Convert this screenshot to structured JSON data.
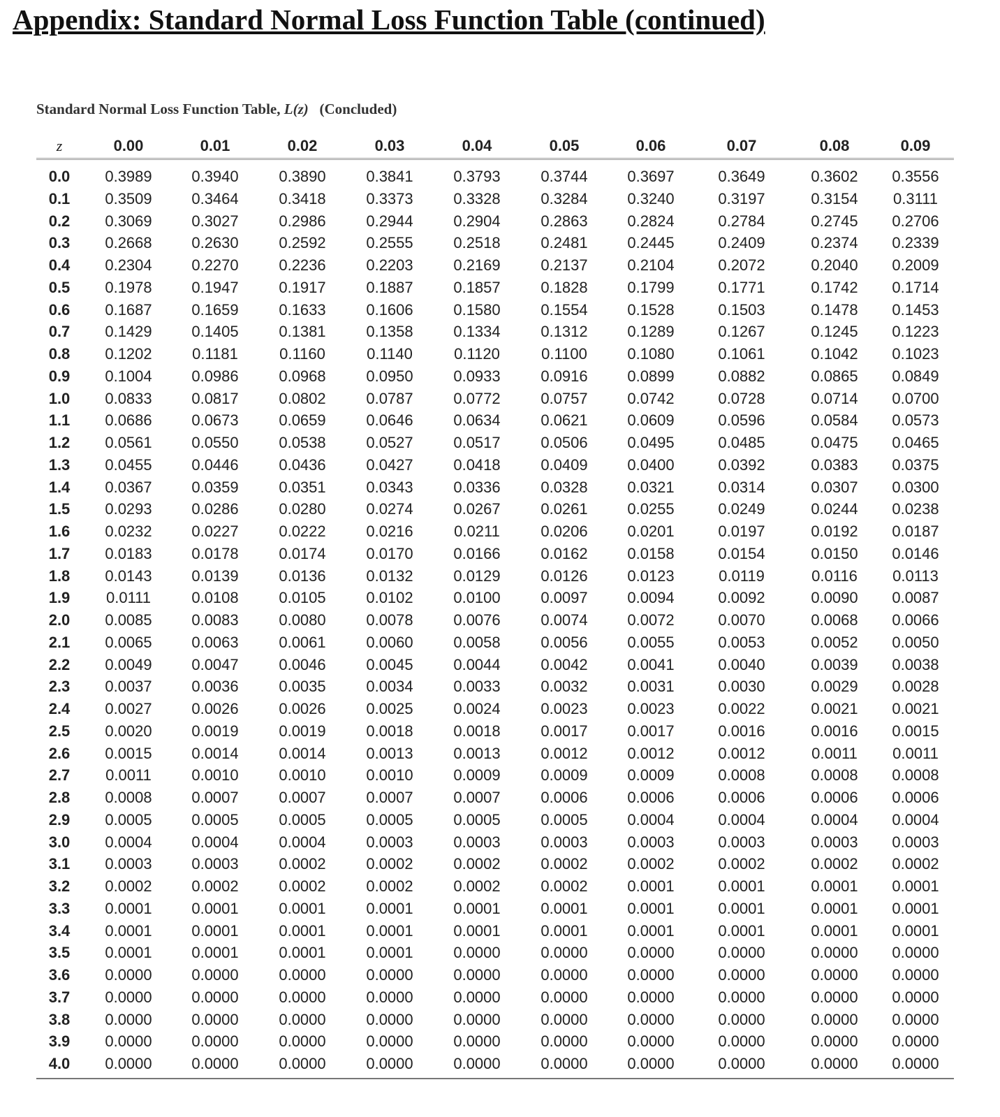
{
  "page_title": "Appendix: Standard Normal Loss Function Table (continued)",
  "table": {
    "caption_main": "Standard Normal Loss Function Table, ",
    "caption_func": "L(z)",
    "caption_suffix": "(Concluded)",
    "headers": [
      "z",
      "0.00",
      "0.01",
      "0.02",
      "0.03",
      "0.04",
      "0.05",
      "0.06",
      "0.07",
      "0.08",
      "0.09"
    ],
    "rows": [
      [
        "0.0",
        "0.3989",
        "0.3940",
        "0.3890",
        "0.3841",
        "0.3793",
        "0.3744",
        "0.3697",
        "0.3649",
        "0.3602",
        "0.3556"
      ],
      [
        "0.1",
        "0.3509",
        "0.3464",
        "0.3418",
        "0.3373",
        "0.3328",
        "0.3284",
        "0.3240",
        "0.3197",
        "0.3154",
        "0.3111"
      ],
      [
        "0.2",
        "0.3069",
        "0.3027",
        "0.2986",
        "0.2944",
        "0.2904",
        "0.2863",
        "0.2824",
        "0.2784",
        "0.2745",
        "0.2706"
      ],
      [
        "0.3",
        "0.2668",
        "0.2630",
        "0.2592",
        "0.2555",
        "0.2518",
        "0.2481",
        "0.2445",
        "0.2409",
        "0.2374",
        "0.2339"
      ],
      [
        "0.4",
        "0.2304",
        "0.2270",
        "0.2236",
        "0.2203",
        "0.2169",
        "0.2137",
        "0.2104",
        "0.2072",
        "0.2040",
        "0.2009"
      ],
      [
        "0.5",
        "0.1978",
        "0.1947",
        "0.1917",
        "0.1887",
        "0.1857",
        "0.1828",
        "0.1799",
        "0.1771",
        "0.1742",
        "0.1714"
      ],
      [
        "0.6",
        "0.1687",
        "0.1659",
        "0.1633",
        "0.1606",
        "0.1580",
        "0.1554",
        "0.1528",
        "0.1503",
        "0.1478",
        "0.1453"
      ],
      [
        "0.7",
        "0.1429",
        "0.1405",
        "0.1381",
        "0.1358",
        "0.1334",
        "0.1312",
        "0.1289",
        "0.1267",
        "0.1245",
        "0.1223"
      ],
      [
        "0.8",
        "0.1202",
        "0.1181",
        "0.1160",
        "0.1140",
        "0.1120",
        "0.1100",
        "0.1080",
        "0.1061",
        "0.1042",
        "0.1023"
      ],
      [
        "0.9",
        "0.1004",
        "0.0986",
        "0.0968",
        "0.0950",
        "0.0933",
        "0.0916",
        "0.0899",
        "0.0882",
        "0.0865",
        "0.0849"
      ],
      [
        "1.0",
        "0.0833",
        "0.0817",
        "0.0802",
        "0.0787",
        "0.0772",
        "0.0757",
        "0.0742",
        "0.0728",
        "0.0714",
        "0.0700"
      ],
      [
        "1.1",
        "0.0686",
        "0.0673",
        "0.0659",
        "0.0646",
        "0.0634",
        "0.0621",
        "0.0609",
        "0.0596",
        "0.0584",
        "0.0573"
      ],
      [
        "1.2",
        "0.0561",
        "0.0550",
        "0.0538",
        "0.0527",
        "0.0517",
        "0.0506",
        "0.0495",
        "0.0485",
        "0.0475",
        "0.0465"
      ],
      [
        "1.3",
        "0.0455",
        "0.0446",
        "0.0436",
        "0.0427",
        "0.0418",
        "0.0409",
        "0.0400",
        "0.0392",
        "0.0383",
        "0.0375"
      ],
      [
        "1.4",
        "0.0367",
        "0.0359",
        "0.0351",
        "0.0343",
        "0.0336",
        "0.0328",
        "0.0321",
        "0.0314",
        "0.0307",
        "0.0300"
      ],
      [
        "1.5",
        "0.0293",
        "0.0286",
        "0.0280",
        "0.0274",
        "0.0267",
        "0.0261",
        "0.0255",
        "0.0249",
        "0.0244",
        "0.0238"
      ],
      [
        "1.6",
        "0.0232",
        "0.0227",
        "0.0222",
        "0.0216",
        "0.0211",
        "0.0206",
        "0.0201",
        "0.0197",
        "0.0192",
        "0.0187"
      ],
      [
        "1.7",
        "0.0183",
        "0.0178",
        "0.0174",
        "0.0170",
        "0.0166",
        "0.0162",
        "0.0158",
        "0.0154",
        "0.0150",
        "0.0146"
      ],
      [
        "1.8",
        "0.0143",
        "0.0139",
        "0.0136",
        "0.0132",
        "0.0129",
        "0.0126",
        "0.0123",
        "0.0119",
        "0.0116",
        "0.0113"
      ],
      [
        "1.9",
        "0.0111",
        "0.0108",
        "0.0105",
        "0.0102",
        "0.0100",
        "0.0097",
        "0.0094",
        "0.0092",
        "0.0090",
        "0.0087"
      ],
      [
        "2.0",
        "0.0085",
        "0.0083",
        "0.0080",
        "0.0078",
        "0.0076",
        "0.0074",
        "0.0072",
        "0.0070",
        "0.0068",
        "0.0066"
      ],
      [
        "2.1",
        "0.0065",
        "0.0063",
        "0.0061",
        "0.0060",
        "0.0058",
        "0.0056",
        "0.0055",
        "0.0053",
        "0.0052",
        "0.0050"
      ],
      [
        "2.2",
        "0.0049",
        "0.0047",
        "0.0046",
        "0.0045",
        "0.0044",
        "0.0042",
        "0.0041",
        "0.0040",
        "0.0039",
        "0.0038"
      ],
      [
        "2.3",
        "0.0037",
        "0.0036",
        "0.0035",
        "0.0034",
        "0.0033",
        "0.0032",
        "0.0031",
        "0.0030",
        "0.0029",
        "0.0028"
      ],
      [
        "2.4",
        "0.0027",
        "0.0026",
        "0.0026",
        "0.0025",
        "0.0024",
        "0.0023",
        "0.0023",
        "0.0022",
        "0.0021",
        "0.0021"
      ],
      [
        "2.5",
        "0.0020",
        "0.0019",
        "0.0019",
        "0.0018",
        "0.0018",
        "0.0017",
        "0.0017",
        "0.0016",
        "0.0016",
        "0.0015"
      ],
      [
        "2.6",
        "0.0015",
        "0.0014",
        "0.0014",
        "0.0013",
        "0.0013",
        "0.0012",
        "0.0012",
        "0.0012",
        "0.0011",
        "0.0011"
      ],
      [
        "2.7",
        "0.0011",
        "0.0010",
        "0.0010",
        "0.0010",
        "0.0009",
        "0.0009",
        "0.0009",
        "0.0008",
        "0.0008",
        "0.0008"
      ],
      [
        "2.8",
        "0.0008",
        "0.0007",
        "0.0007",
        "0.0007",
        "0.0007",
        "0.0006",
        "0.0006",
        "0.0006",
        "0.0006",
        "0.0006"
      ],
      [
        "2.9",
        "0.0005",
        "0.0005",
        "0.0005",
        "0.0005",
        "0.0005",
        "0.0005",
        "0.0004",
        "0.0004",
        "0.0004",
        "0.0004"
      ],
      [
        "3.0",
        "0.0004",
        "0.0004",
        "0.0004",
        "0.0003",
        "0.0003",
        "0.0003",
        "0.0003",
        "0.0003",
        "0.0003",
        "0.0003"
      ],
      [
        "3.1",
        "0.0003",
        "0.0003",
        "0.0002",
        "0.0002",
        "0.0002",
        "0.0002",
        "0.0002",
        "0.0002",
        "0.0002",
        "0.0002"
      ],
      [
        "3.2",
        "0.0002",
        "0.0002",
        "0.0002",
        "0.0002",
        "0.0002",
        "0.0002",
        "0.0001",
        "0.0001",
        "0.0001",
        "0.0001"
      ],
      [
        "3.3",
        "0.0001",
        "0.0001",
        "0.0001",
        "0.0001",
        "0.0001",
        "0.0001",
        "0.0001",
        "0.0001",
        "0.0001",
        "0.0001"
      ],
      [
        "3.4",
        "0.0001",
        "0.0001",
        "0.0001",
        "0.0001",
        "0.0001",
        "0.0001",
        "0.0001",
        "0.0001",
        "0.0001",
        "0.0001"
      ],
      [
        "3.5",
        "0.0001",
        "0.0001",
        "0.0001",
        "0.0001",
        "0.0000",
        "0.0000",
        "0.0000",
        "0.0000",
        "0.0000",
        "0.0000"
      ],
      [
        "3.6",
        "0.0000",
        "0.0000",
        "0.0000",
        "0.0000",
        "0.0000",
        "0.0000",
        "0.0000",
        "0.0000",
        "0.0000",
        "0.0000"
      ],
      [
        "3.7",
        "0.0000",
        "0.0000",
        "0.0000",
        "0.0000",
        "0.0000",
        "0.0000",
        "0.0000",
        "0.0000",
        "0.0000",
        "0.0000"
      ],
      [
        "3.8",
        "0.0000",
        "0.0000",
        "0.0000",
        "0.0000",
        "0.0000",
        "0.0000",
        "0.0000",
        "0.0000",
        "0.0000",
        "0.0000"
      ],
      [
        "3.9",
        "0.0000",
        "0.0000",
        "0.0000",
        "0.0000",
        "0.0000",
        "0.0000",
        "0.0000",
        "0.0000",
        "0.0000",
        "0.0000"
      ],
      [
        "4.0",
        "0.0000",
        "0.0000",
        "0.0000",
        "0.0000",
        "0.0000",
        "0.0000",
        "0.0000",
        "0.0000",
        "0.0000",
        "0.0000"
      ]
    ]
  }
}
